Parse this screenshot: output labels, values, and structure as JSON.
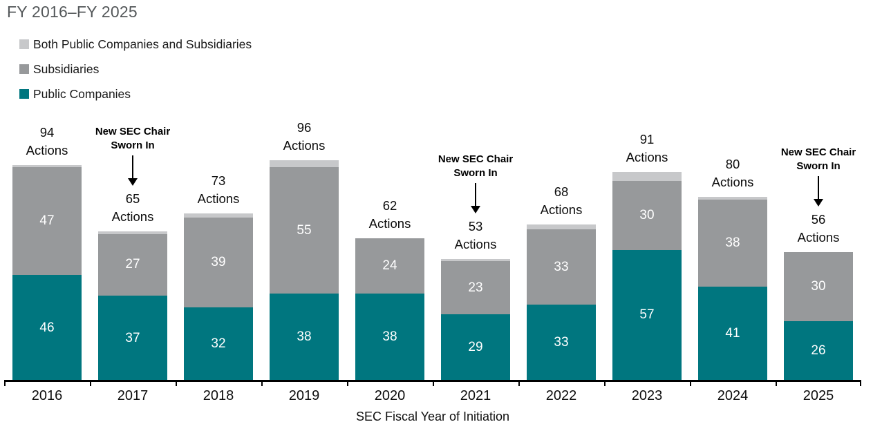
{
  "chart_data": {
    "type": "bar",
    "stacked": true,
    "title": "FY 2016–FY 2025",
    "xlabel": "SEC Fiscal Year of Initiation",
    "legend_position": "top-left",
    "grid": false,
    "categories": [
      "2016",
      "2017",
      "2018",
      "2019",
      "2020",
      "2021",
      "2022",
      "2023",
      "2024",
      "2025"
    ],
    "series": [
      {
        "name": "Public Companies",
        "color": "#00767F",
        "values": [
          46,
          37,
          32,
          38,
          38,
          29,
          33,
          57,
          41,
          26
        ]
      },
      {
        "name": "Subsidiaries",
        "color": "#97999B",
        "values": [
          47,
          27,
          39,
          55,
          24,
          23,
          33,
          30,
          38,
          30
        ]
      },
      {
        "name": "Both Public Companies and Subsidiaries",
        "color": "#C7C8CA",
        "values": [
          1,
          1,
          2,
          3,
          0,
          1,
          2,
          4,
          1,
          0
        ]
      }
    ],
    "totals": [
      94,
      65,
      73,
      96,
      62,
      53,
      68,
      91,
      80,
      56
    ],
    "total_label_suffix": "Actions",
    "value_label_color": "#ffffff",
    "annotations": [
      {
        "category": "2017",
        "text_line1": "New SEC Chair",
        "text_line2": "Sworn In"
      },
      {
        "category": "2021",
        "text_line1": "New SEC Chair",
        "text_line2": "Sworn In"
      },
      {
        "category": "2025",
        "text_line1": "New SEC Chair",
        "text_line2": "Sworn In"
      }
    ]
  },
  "title_color": "#54585A"
}
